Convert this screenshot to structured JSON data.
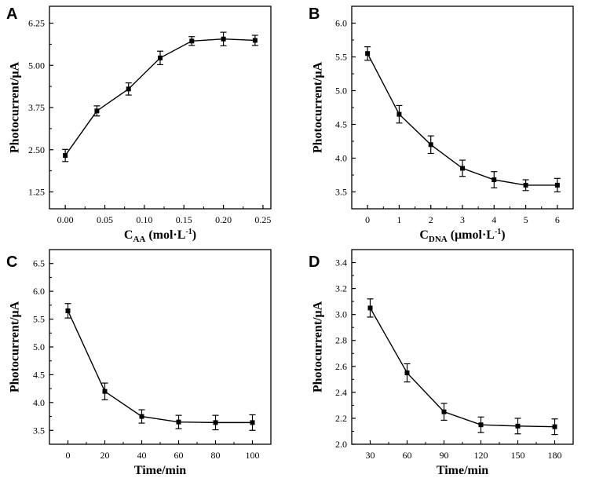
{
  "chart_data": [
    {
      "panel": "A",
      "type": "line",
      "ylabel": "Photocurrent/μA",
      "xlabel": "C",
      "xlabel_sub": "AA",
      "xlabel_unit": "(mol·L",
      "xlabel_sup": "-1",
      "xlabel_close": ")",
      "xlim": [
        -0.02,
        0.26
      ],
      "ylim": [
        0.75,
        6.75
      ],
      "xticks": [
        "0.00",
        "0.05",
        "0.10",
        "0.15",
        "0.20",
        "0.25"
      ],
      "xtick_values": [
        0,
        0.05,
        0.1,
        0.15,
        0.2,
        0.25
      ],
      "yticks": [
        "1.25",
        "2.50",
        "3.75",
        "5.00",
        "6.25"
      ],
      "ytick_values": [
        1.25,
        2.5,
        3.75,
        5.0,
        6.25
      ],
      "x": [
        0,
        0.04,
        0.08,
        0.12,
        0.16,
        0.2,
        0.24
      ],
      "y": [
        2.33,
        3.65,
        4.3,
        5.22,
        5.72,
        5.78,
        5.74
      ],
      "err": [
        0.18,
        0.15,
        0.18,
        0.2,
        0.13,
        0.2,
        0.15
      ]
    },
    {
      "panel": "B",
      "type": "line",
      "ylabel": "Photocurrent/μA",
      "xlabel": "C",
      "xlabel_sub": "DNA",
      "xlabel_unit": "(μmol·L",
      "xlabel_sup": "-1",
      "xlabel_close": ")",
      "xlim": [
        -0.5,
        6.5
      ],
      "ylim": [
        3.25,
        6.25
      ],
      "xticks": [
        "0",
        "1",
        "2",
        "3",
        "4",
        "5",
        "6"
      ],
      "xtick_values": [
        0,
        1,
        2,
        3,
        4,
        5,
        6
      ],
      "yticks": [
        "3.5",
        "4.0",
        "4.5",
        "5.0",
        "5.5",
        "6.0"
      ],
      "ytick_values": [
        3.5,
        4.0,
        4.5,
        5.0,
        5.5,
        6.0
      ],
      "x": [
        0,
        1,
        2,
        3,
        4,
        5,
        6
      ],
      "y": [
        5.55,
        4.65,
        4.2,
        3.85,
        3.68,
        3.6,
        3.6
      ],
      "err": [
        0.1,
        0.13,
        0.13,
        0.12,
        0.12,
        0.08,
        0.1
      ]
    },
    {
      "panel": "C",
      "type": "line",
      "ylabel": "Photocurrent/μA",
      "xlabel": "Time/min",
      "xlim": [
        -10,
        110
      ],
      "ylim": [
        3.25,
        6.75
      ],
      "xticks": [
        "0",
        "20",
        "40",
        "60",
        "80",
        "100"
      ],
      "xtick_values": [
        0,
        20,
        40,
        60,
        80,
        100
      ],
      "yticks": [
        "3.5",
        "4.0",
        "4.5",
        "5.0",
        "5.5",
        "6.0",
        "6.5"
      ],
      "ytick_values": [
        3.5,
        4.0,
        4.5,
        5.0,
        5.5,
        6.0,
        6.5
      ],
      "x": [
        0,
        20,
        40,
        60,
        80,
        100
      ],
      "y": [
        5.65,
        4.2,
        3.75,
        3.65,
        3.64,
        3.64
      ],
      "err": [
        0.13,
        0.15,
        0.12,
        0.12,
        0.13,
        0.14
      ]
    },
    {
      "panel": "D",
      "type": "line",
      "ylabel": "Photocurrent/μA",
      "xlabel": "Time/min",
      "xlim": [
        15,
        195
      ],
      "ylim": [
        2.0,
        3.5
      ],
      "xticks": [
        "30",
        "60",
        "90",
        "120",
        "150",
        "180"
      ],
      "xtick_values": [
        30,
        60,
        90,
        120,
        150,
        180
      ],
      "yticks": [
        "2.0",
        "2.2",
        "2.4",
        "2.6",
        "2.8",
        "3.0",
        "3.2",
        "3.4"
      ],
      "ytick_values": [
        2.0,
        2.2,
        2.4,
        2.6,
        2.8,
        3.0,
        3.2,
        3.4
      ],
      "x": [
        30,
        60,
        90,
        120,
        150,
        180
      ],
      "y": [
        3.05,
        2.55,
        2.25,
        2.15,
        2.14,
        2.135
      ],
      "err": [
        0.07,
        0.07,
        0.065,
        0.06,
        0.06,
        0.06
      ]
    }
  ]
}
